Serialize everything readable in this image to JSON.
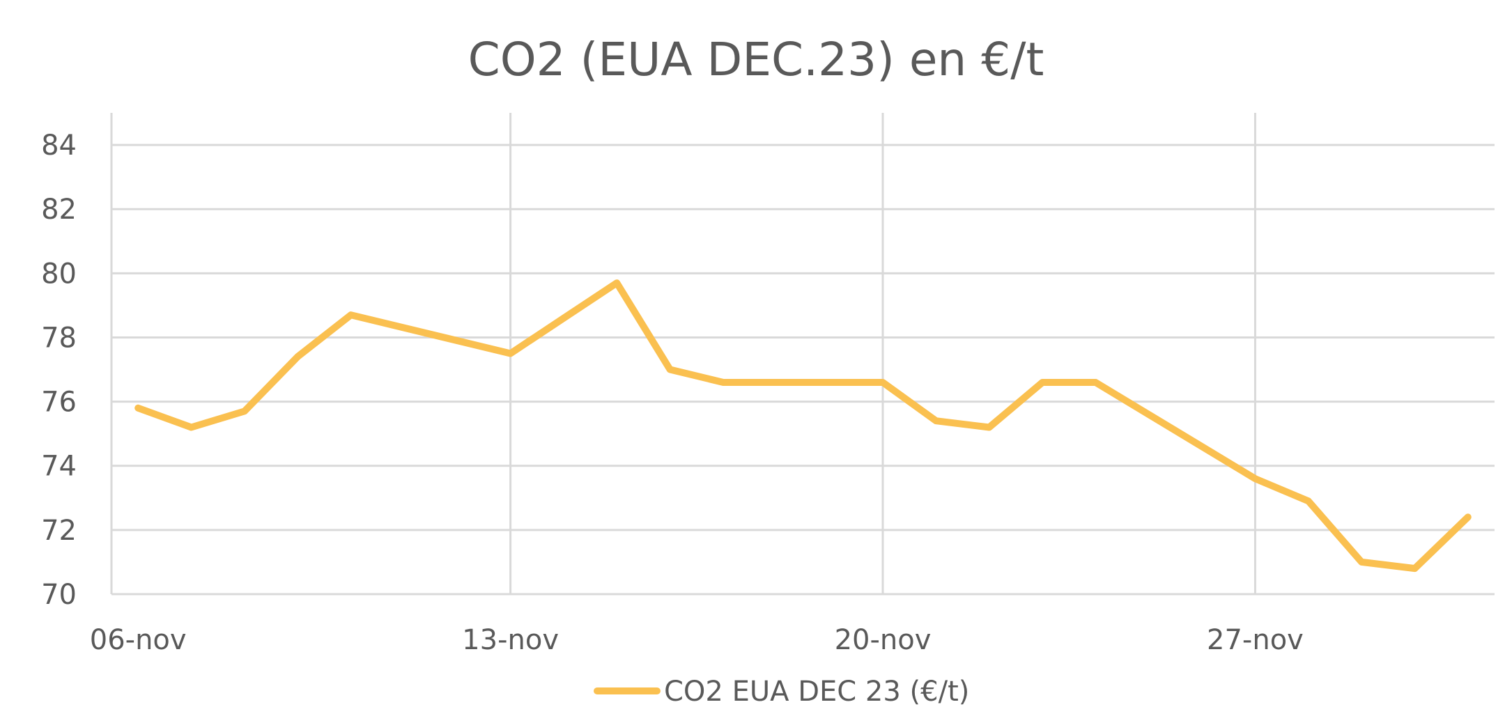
{
  "chart_data": {
    "type": "line",
    "title": "CO2 (EUA DEC.23) en €/t",
    "xlabel": "",
    "ylabel": "",
    "x": [
      "06-nov",
      "07-nov",
      "08-nov",
      "09-nov",
      "10-nov",
      "13-nov",
      "14-nov",
      "15-nov",
      "16-nov",
      "17-nov",
      "20-nov",
      "21-nov",
      "22-nov",
      "23-nov",
      "24-nov",
      "27-nov",
      "28-nov",
      "29-nov",
      "30-nov",
      "01-dec"
    ],
    "x_date_offsets_days": [
      0,
      1,
      2,
      3,
      4,
      7,
      8,
      9,
      10,
      11,
      14,
      15,
      16,
      17,
      18,
      21,
      22,
      23,
      24,
      25
    ],
    "x_range_days": [
      -0.5,
      25.5
    ],
    "x_ticks": [
      {
        "label": "06-nov",
        "day": 0
      },
      {
        "label": "13-nov",
        "day": 7
      },
      {
        "label": "20-nov",
        "day": 14
      },
      {
        "label": "27-nov",
        "day": 21
      }
    ],
    "ylim": [
      70,
      85
    ],
    "y_ticks": [
      70,
      72,
      74,
      76,
      78,
      80,
      82,
      84
    ],
    "grid": true,
    "legend_position": "bottom",
    "series": [
      {
        "name": "CO2 EUA DEC 23 (€/t)",
        "color": "#FAC050",
        "values": [
          75.8,
          75.2,
          75.7,
          77.4,
          78.7,
          77.5,
          78.6,
          79.7,
          77.0,
          76.6,
          76.6,
          75.4,
          75.2,
          76.6,
          76.6,
          73.6,
          72.9,
          71.0,
          70.8,
          72.4
        ]
      }
    ]
  }
}
